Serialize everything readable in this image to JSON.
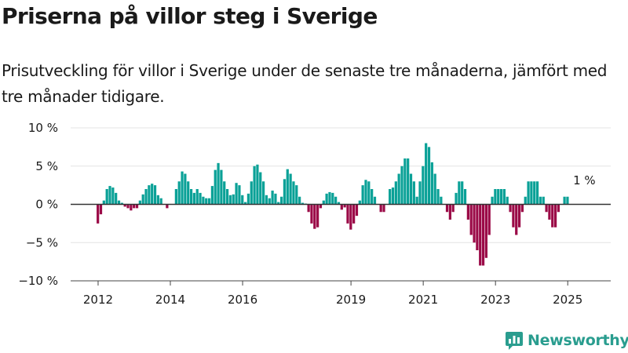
{
  "header": {
    "title": "Priserna på villor steg i Sverige",
    "subtitle": "Prisutveckling för villor i Sverige under de senaste tre månaderna, jämfört med tre månader tidigare."
  },
  "brand": {
    "name": "Newsworthy"
  },
  "colors": {
    "positive": "#0aa197",
    "negative": "#9b0a47",
    "grid": "#e3e3e3",
    "zero": "#333333"
  },
  "chart_data": {
    "type": "bar",
    "x_unit": "month",
    "start": "2011-11",
    "ylim": [
      -10,
      10
    ],
    "yticks": [
      10,
      5,
      0,
      -5,
      -10
    ],
    "ytick_labels": [
      "10 %",
      "5 %",
      "0 %",
      "−5 %",
      "−10 %"
    ],
    "xticks": [
      {
        "label": "2012",
        "date": "2012-01"
      },
      {
        "label": "2014",
        "date": "2014-01"
      },
      {
        "label": "2016",
        "date": "2016-01"
      },
      {
        "label": "2019",
        "date": "2019-01"
      },
      {
        "label": "2021",
        "date": "2021-01"
      },
      {
        "label": "2023",
        "date": "2023-01"
      },
      {
        "label": "2025",
        "date": "2025-01"
      }
    ],
    "annotation": {
      "text": "1 %",
      "date": "2025-06"
    },
    "grid": true,
    "legend": "none",
    "values": [
      null,
      null,
      -2.5,
      -1.3,
      0.5,
      2.0,
      2.4,
      2.2,
      1.5,
      0.5,
      0.2,
      -0.3,
      -0.5,
      -0.8,
      -0.5,
      -0.5,
      0.5,
      1.3,
      2.0,
      2.5,
      2.7,
      2.5,
      1.2,
      0.8,
      0.0,
      -0.5,
      0.0,
      0.0,
      2.0,
      3.0,
      4.3,
      4.0,
      3.0,
      2.0,
      1.5,
      2.0,
      1.5,
      1.0,
      0.8,
      0.8,
      2.4,
      4.5,
      5.4,
      4.5,
      3.0,
      2.0,
      1.2,
      1.3,
      2.8,
      2.5,
      1.2,
      0.3,
      1.4,
      3.0,
      5.0,
      5.2,
      4.2,
      3.0,
      1.2,
      0.8,
      1.8,
      1.4,
      0.3,
      1.0,
      3.3,
      4.6,
      4.0,
      3.0,
      2.5,
      1.0,
      0.2,
      0.1,
      -1.0,
      -2.5,
      -3.2,
      -3.0,
      -0.5,
      0.5,
      1.4,
      1.6,
      1.5,
      1.0,
      0.3,
      -0.7,
      -0.4,
      -2.5,
      -3.3,
      -2.5,
      -1.5,
      0.5,
      2.5,
      3.2,
      3.0,
      2.0,
      1.0,
      0.0,
      -1.0,
      -1.0,
      0.0,
      2.0,
      2.2,
      3.0,
      4.0,
      5.0,
      6.0,
      6.0,
      4.0,
      3.0,
      1.0,
      3.0,
      5.0,
      8.0,
      7.5,
      5.5,
      4.0,
      2.0,
      1.0,
      0.0,
      -1.0,
      -2.0,
      -1.0,
      1.5,
      3.0,
      3.0,
      2.0,
      -2.0,
      -4.0,
      -5.0,
      -6.0,
      -8.0,
      -8.0,
      -7.0,
      -4.0,
      1.0,
      2.0,
      2.0,
      2.0,
      2.0,
      1.0,
      -1.0,
      -3.0,
      -4.0,
      -3.0,
      -1.0,
      1.0,
      3.0,
      3.0,
      3.0,
      3.0,
      1.0,
      1.0,
      -1.0,
      -2.0,
      -3.0,
      -3.0,
      -1.0,
      0.0,
      1.0,
      1.0
    ]
  }
}
